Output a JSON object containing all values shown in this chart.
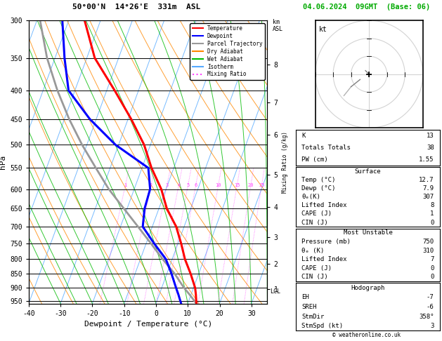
{
  "title_left": "50°00'N  14°26'E  331m  ASL",
  "title_right": "04.06.2024  09GMT  (Base: 06)",
  "xlabel": "Dewpoint / Temperature (°C)",
  "ylabel_left": "hPa",
  "pressure_ticks": [
    300,
    350,
    400,
    450,
    500,
    550,
    600,
    650,
    700,
    750,
    800,
    850,
    900,
    950
  ],
  "temp_ticks": [
    -40,
    -30,
    -20,
    -10,
    0,
    10,
    20,
    30
  ],
  "km_ticks": [
    1,
    2,
    3,
    4,
    5,
    6,
    7,
    8
  ],
  "km_pressures": [
    905,
    815,
    730,
    645,
    565,
    480,
    420,
    360
  ],
  "lcl_pressure": 915,
  "P_MIN": 300,
  "P_MAX": 960,
  "T_MIN": -40,
  "T_MAX": 35,
  "isotherm_color": "#55aaff",
  "isotherm_alpha": 0.8,
  "dry_adiabat_color": "#ff8800",
  "dry_adiabat_alpha": 0.8,
  "wet_adiabat_color": "#00bb00",
  "wet_adiabat_alpha": 0.8,
  "mixing_ratio_color": "#ff44ff",
  "mixing_ratio_linestyle": "dotted",
  "temp_profile": {
    "pressures": [
      960,
      925,
      900,
      850,
      800,
      750,
      700,
      650,
      600,
      550,
      500,
      450,
      400,
      350,
      300
    ],
    "temps": [
      12.7,
      11.5,
      10.5,
      7.5,
      4.0,
      1.0,
      -2.5,
      -7.5,
      -11.5,
      -17.0,
      -22.0,
      -29.0,
      -37.5,
      -47.5,
      -55.0
    ],
    "color": "#ff0000",
    "linewidth": 2.2
  },
  "dewp_profile": {
    "pressures": [
      960,
      925,
      900,
      850,
      800,
      750,
      700,
      650,
      600,
      550,
      500,
      450,
      400,
      350,
      300
    ],
    "temps": [
      7.9,
      6.0,
      4.5,
      1.5,
      -2.0,
      -7.5,
      -13.0,
      -14.5,
      -15.0,
      -18.0,
      -31.0,
      -42.0,
      -52.0,
      -57.0,
      -62.0
    ],
    "color": "#0000ff",
    "linewidth": 2.2
  },
  "parcel_profile": {
    "pressures": [
      960,
      925,
      900,
      850,
      800,
      750,
      700,
      650,
      600,
      550,
      500,
      450,
      400,
      350,
      300
    ],
    "temps": [
      12.7,
      9.5,
      7.0,
      2.5,
      -3.0,
      -8.5,
      -14.5,
      -21.0,
      -28.0,
      -34.5,
      -41.5,
      -48.5,
      -55.5,
      -62.5,
      -69.0
    ],
    "color": "#999999",
    "linewidth": 2.0
  },
  "stats": {
    "K": 13,
    "Totals_Totals": 38,
    "PW_cm": 1.55,
    "Surface_Temp": 12.7,
    "Surface_Dewp": 7.9,
    "Surface_theta_e": 307,
    "Surface_LI": 8,
    "Surface_CAPE": 1,
    "Surface_CIN": 0,
    "MU_Pressure": 750,
    "MU_theta_e": 310,
    "MU_LI": 7,
    "MU_CAPE": 0,
    "MU_CIN": 0,
    "EH": -7,
    "SREH": -6,
    "StmDir": 358,
    "StmSpd": 3
  },
  "legend_items": [
    {
      "label": "Temperature",
      "color": "#ff0000",
      "style": "solid"
    },
    {
      "label": "Dewpoint",
      "color": "#0000ff",
      "style": "solid"
    },
    {
      "label": "Parcel Trajectory",
      "color": "#999999",
      "style": "solid"
    },
    {
      "label": "Dry Adiabat",
      "color": "#ff8800",
      "style": "solid"
    },
    {
      "label": "Wet Adiabat",
      "color": "#00bb00",
      "style": "solid"
    },
    {
      "label": "Isotherm",
      "color": "#55aaff",
      "style": "solid"
    },
    {
      "label": "Mixing Ratio",
      "color": "#ff44ff",
      "style": "dotted"
    }
  ]
}
